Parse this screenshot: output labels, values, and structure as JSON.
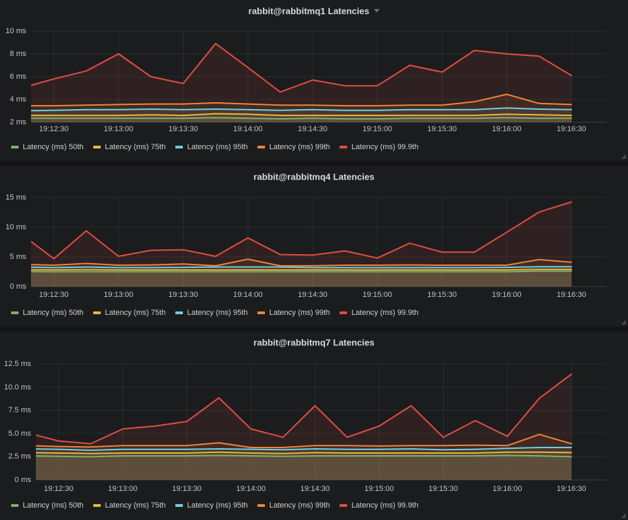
{
  "times": [
    "19:12:15",
    "19:12:30",
    "19:12:45",
    "19:13:00",
    "19:13:15",
    "19:13:30",
    "19:13:45",
    "19:14:00",
    "19:14:15",
    "19:14:30",
    "19:14:45",
    "19:15:00",
    "19:15:15",
    "19:15:30",
    "19:15:45",
    "19:16:00",
    "19:16:15",
    "19:16:30"
  ],
  "chart_data": [
    {
      "type": "area",
      "title": "rabbit@rabbitmq1 Latencies",
      "has_menu_caret": true,
      "ylim": [
        2,
        10
      ],
      "yticks": [
        {
          "value": 2,
          "label": "2 ms"
        },
        {
          "value": 4,
          "label": "4 ms"
        },
        {
          "value": 6,
          "label": "6 ms"
        },
        {
          "value": 8,
          "label": "8 ms"
        },
        {
          "value": 10,
          "label": "10 ms"
        }
      ],
      "xticks": [
        "19:12:30",
        "19:13:00",
        "19:13:30",
        "19:14:00",
        "19:14:30",
        "19:15:00",
        "19:15:30",
        "19:16:00",
        "19:16:30"
      ],
      "grid": true,
      "legend_position": "bottom",
      "fill_opacity": 0.1,
      "series": [
        {
          "name": "Latency (ms) 50th",
          "color": "#7EB26D",
          "values": [
            2.35,
            2.35,
            2.35,
            2.35,
            2.35,
            2.35,
            2.4,
            2.35,
            2.3,
            2.35,
            2.3,
            2.3,
            2.35,
            2.35,
            2.35,
            2.4,
            2.35,
            2.35
          ]
        },
        {
          "name": "Latency (ms) 75th",
          "color": "#EAB839",
          "values": [
            2.6,
            2.6,
            2.6,
            2.6,
            2.65,
            2.6,
            2.75,
            2.7,
            2.6,
            2.6,
            2.6,
            2.6,
            2.6,
            2.6,
            2.6,
            2.7,
            2.65,
            2.6
          ]
        },
        {
          "name": "Latency (ms) 95th",
          "color": "#6ED0E0",
          "values": [
            3.0,
            3.05,
            3.1,
            3.1,
            3.15,
            3.1,
            3.15,
            3.1,
            3.05,
            3.1,
            3.05,
            3.05,
            3.1,
            3.1,
            3.1,
            3.25,
            3.15,
            3.1
          ]
        },
        {
          "name": "Latency (ms) 99th",
          "color": "#EF843C",
          "values": [
            3.45,
            3.45,
            3.5,
            3.55,
            3.6,
            3.6,
            3.7,
            3.6,
            3.5,
            3.5,
            3.45,
            3.45,
            3.5,
            3.5,
            3.8,
            4.45,
            3.65,
            3.55
          ]
        },
        {
          "name": "Latency (ms) 99.9th",
          "color": "#E24D42",
          "values": [
            5.0,
            5.8,
            6.5,
            8.0,
            6.0,
            5.4,
            8.9,
            6.8,
            4.65,
            5.7,
            5.2,
            5.2,
            7.0,
            6.4,
            8.3,
            8.0,
            7.8,
            6.1
          ]
        }
      ]
    },
    {
      "type": "area",
      "title": "rabbit@rabbitmq4 Latencies",
      "has_menu_caret": false,
      "ylim": [
        0,
        15
      ],
      "yticks": [
        {
          "value": 0,
          "label": "0 ms"
        },
        {
          "value": 5,
          "label": "5 ms"
        },
        {
          "value": 10,
          "label": "10 ms"
        },
        {
          "value": 15,
          "label": "15 ms"
        }
      ],
      "xticks": [
        "19:12:30",
        "19:13:00",
        "19:13:30",
        "19:14:00",
        "19:14:30",
        "19:15:00",
        "19:15:30",
        "19:16:00",
        "19:16:30"
      ],
      "grid": true,
      "legend_position": "bottom",
      "fill_opacity": 0.1,
      "series": [
        {
          "name": "Latency (ms) 50th",
          "color": "#7EB26D",
          "values": [
            2.55,
            2.5,
            2.5,
            2.5,
            2.5,
            2.5,
            2.5,
            2.5,
            2.5,
            2.5,
            2.5,
            2.5,
            2.5,
            2.5,
            2.5,
            2.5,
            2.6,
            2.6
          ]
        },
        {
          "name": "Latency (ms) 75th",
          "color": "#EAB839",
          "values": [
            2.85,
            2.8,
            2.85,
            2.8,
            2.8,
            2.8,
            2.8,
            2.8,
            2.8,
            2.8,
            2.8,
            2.8,
            2.8,
            2.8,
            2.8,
            2.8,
            2.9,
            2.9
          ]
        },
        {
          "name": "Latency (ms) 95th",
          "color": "#6ED0E0",
          "values": [
            3.3,
            3.2,
            3.3,
            3.2,
            3.2,
            3.25,
            3.3,
            3.3,
            3.3,
            3.2,
            3.2,
            3.2,
            3.2,
            3.2,
            3.2,
            3.25,
            3.35,
            3.35
          ]
        },
        {
          "name": "Latency (ms) 99th",
          "color": "#EF843C",
          "values": [
            3.75,
            3.6,
            3.9,
            3.6,
            3.65,
            3.8,
            3.5,
            4.6,
            3.5,
            3.5,
            3.6,
            3.6,
            3.65,
            3.6,
            3.6,
            3.6,
            4.55,
            4.1
          ]
        },
        {
          "name": "Latency (ms) 99.9th",
          "color": "#E24D42",
          "values": [
            8.8,
            4.7,
            9.4,
            5.1,
            6.1,
            6.2,
            5.1,
            8.2,
            5.4,
            5.3,
            6.0,
            4.8,
            7.3,
            5.8,
            5.8,
            9.15,
            12.55,
            14.25
          ]
        }
      ]
    },
    {
      "type": "area",
      "title": "rabbit@rabbitmq7 Latencies",
      "has_menu_caret": false,
      "ylim": [
        0,
        12.5
      ],
      "yticks": [
        {
          "value": 0,
          "label": "0 ms"
        },
        {
          "value": 2.5,
          "label": "2.5 ms"
        },
        {
          "value": 5,
          "label": "5.0 ms"
        },
        {
          "value": 7.5,
          "label": "7.5 ms"
        },
        {
          "value": 10,
          "label": "10.0 ms"
        },
        {
          "value": 12.5,
          "label": "12.5 ms"
        }
      ],
      "xticks": [
        "19:12:30",
        "19:13:00",
        "19:13:30",
        "19:14:00",
        "19:14:30",
        "19:15:00",
        "19:15:30",
        "19:16:00",
        "19:16:30"
      ],
      "grid": true,
      "legend_position": "bottom",
      "fill_opacity": 0.1,
      "series": [
        {
          "name": "Latency (ms) 50th",
          "color": "#7EB26D",
          "values": [
            2.6,
            2.55,
            2.5,
            2.6,
            2.6,
            2.6,
            2.65,
            2.6,
            2.55,
            2.6,
            2.6,
            2.6,
            2.6,
            2.6,
            2.6,
            2.65,
            2.6,
            2.5
          ]
        },
        {
          "name": "Latency (ms) 75th",
          "color": "#EAB839",
          "values": [
            2.95,
            2.9,
            2.85,
            2.9,
            2.9,
            2.9,
            3.0,
            2.9,
            2.85,
            2.95,
            2.9,
            2.9,
            2.9,
            2.9,
            2.9,
            3.0,
            3.0,
            2.95
          ]
        },
        {
          "name": "Latency (ms) 95th",
          "color": "#6ED0E0",
          "values": [
            3.35,
            3.3,
            3.2,
            3.3,
            3.3,
            3.3,
            3.35,
            3.3,
            3.25,
            3.35,
            3.3,
            3.3,
            3.35,
            3.25,
            3.3,
            3.4,
            3.5,
            3.5
          ]
        },
        {
          "name": "Latency (ms) 99th",
          "color": "#EF843C",
          "values": [
            3.7,
            3.6,
            3.55,
            3.7,
            3.7,
            3.7,
            4.0,
            3.5,
            3.5,
            3.7,
            3.7,
            3.65,
            3.7,
            3.7,
            3.75,
            3.7,
            4.9,
            3.9
          ]
        },
        {
          "name": "Latency (ms) 99.9th",
          "color": "#E24D42",
          "values": [
            5.1,
            4.2,
            3.9,
            5.5,
            5.8,
            6.3,
            8.85,
            5.5,
            4.6,
            8.0,
            4.6,
            5.8,
            8.0,
            4.6,
            6.4,
            4.7,
            8.8,
            11.4
          ]
        }
      ]
    }
  ]
}
